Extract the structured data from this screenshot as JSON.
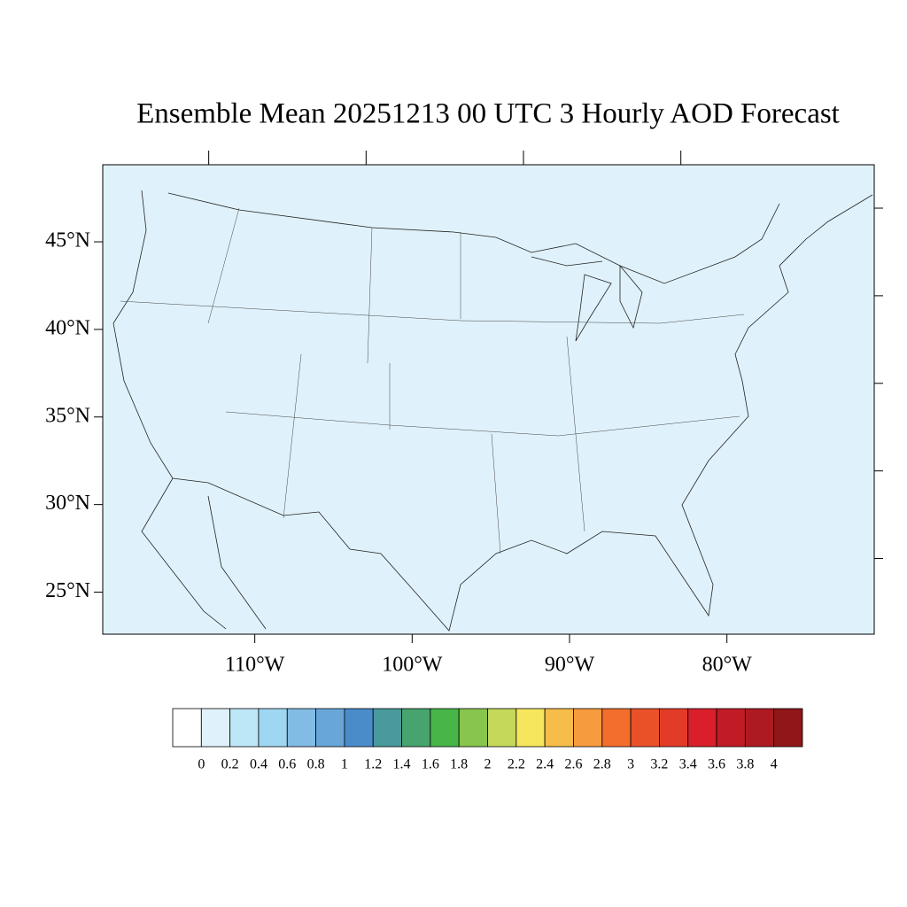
{
  "map": {
    "title": "Ensemble Mean 20251213 00 UTC 3 Hourly AOD Forecast",
    "lat_lim": [
      22.6,
      49.4
    ],
    "lon_lim": [
      119.66,
      70.64
    ],
    "lat_ticks": [
      {
        "value": 45,
        "label": "45°N"
      },
      {
        "value": 40,
        "label": "40°N"
      },
      {
        "value": 35,
        "label": "35°N"
      },
      {
        "value": 30,
        "label": "30°N"
      },
      {
        "value": 25,
        "label": "25°N"
      }
    ],
    "lon_ticks": [
      {
        "value": 110,
        "label": "110°W"
      },
      {
        "value": 100,
        "label": "100°W"
      },
      {
        "value": 90,
        "label": "90°W"
      },
      {
        "value": 80,
        "label": "80°W"
      }
    ],
    "background_color": "#dff2fb",
    "colorbar": {
      "levels": [
        0,
        0.2,
        0.4,
        0.6,
        0.8,
        1,
        1.2,
        1.4,
        1.6,
        1.8,
        2,
        2.2,
        2.4,
        2.6,
        2.8,
        3,
        3.2,
        3.4,
        3.6,
        3.8,
        4
      ],
      "colors": [
        "#ffffff",
        "#dff2fb",
        "#bde6f7",
        "#9fd7f3",
        "#82bce4",
        "#68a6da",
        "#4a8bca",
        "#4a999c",
        "#47a46f",
        "#48b548",
        "#87c54d",
        "#c5d85a",
        "#f6e65d",
        "#f6bd4a",
        "#f69b3e",
        "#f36d2c",
        "#ea5129",
        "#e23b27",
        "#d81f2a",
        "#c11b25",
        "#ad1a21",
        "#901619"
      ]
    }
  }
}
